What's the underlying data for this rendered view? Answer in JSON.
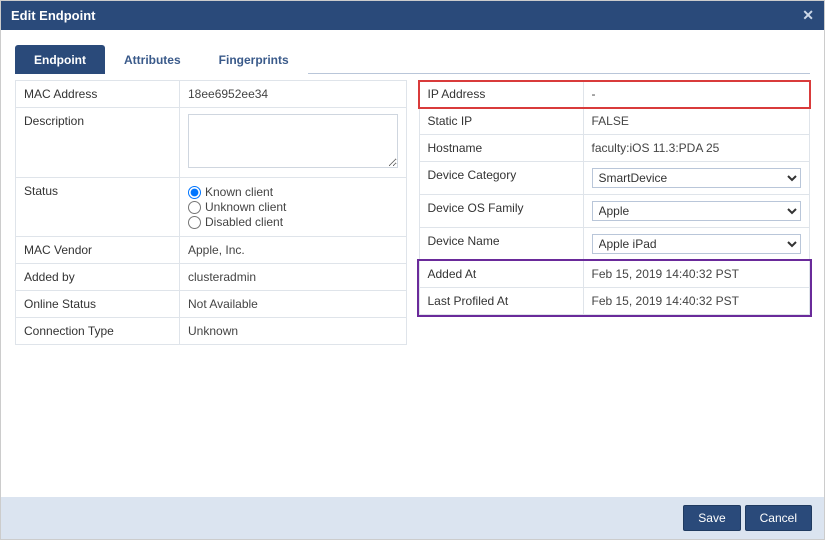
{
  "dialog": {
    "title": "Edit Endpoint"
  },
  "tabs": {
    "items": [
      {
        "label": "Endpoint",
        "active": true
      },
      {
        "label": "Attributes",
        "active": false
      },
      {
        "label": "Fingerprints",
        "active": false
      }
    ]
  },
  "left": {
    "mac_label": "MAC Address",
    "mac_value": "18ee6952ee34",
    "description_label": "Description",
    "description_value": "",
    "status_label": "Status",
    "status_options": {
      "known": "Known client",
      "unknown": "Unknown client",
      "disabled": "Disabled client"
    },
    "status_selected": "known",
    "mac_vendor_label": "MAC Vendor",
    "mac_vendor_value": "Apple, Inc.",
    "added_by_label": "Added by",
    "added_by_value": "clusteradmin",
    "online_status_label": "Online Status",
    "online_status_value": "Not Available",
    "connection_type_label": "Connection Type",
    "connection_type_value": "Unknown"
  },
  "right": {
    "ip_label": "IP Address",
    "ip_value": "-",
    "static_ip_label": "Static IP",
    "static_ip_value": "FALSE",
    "hostname_label": "Hostname",
    "hostname_value": "faculty:iOS 11.3:PDA 25",
    "device_category_label": "Device Category",
    "device_category_value": "SmartDevice",
    "device_os_label": "Device OS Family",
    "device_os_value": "Apple",
    "device_name_label": "Device Name",
    "device_name_value": "Apple iPad",
    "added_at_label": "Added At",
    "added_at_value": "Feb 15, 2019 14:40:32 PST",
    "last_profiled_label": "Last Profiled At",
    "last_profiled_value": "Feb 15, 2019 14:40:32 PST"
  },
  "footer": {
    "save": "Save",
    "cancel": "Cancel"
  },
  "highlight": {
    "red_row": "ip",
    "purple_rows": [
      "added_at",
      "last_profiled"
    ]
  },
  "colors": {
    "titlebar_bg": "#2a4a7a",
    "titlebar_fg": "#ffffff",
    "tab_active_bg": "#2a4a7a",
    "tab_inactive_fg": "#3a5a8a",
    "cell_border": "#dfe4ea",
    "footer_bg": "#dbe4f0",
    "btn_bg": "#2a4a7a",
    "highlight_red": "#d93b3b",
    "highlight_purple": "#6a2a9a"
  }
}
